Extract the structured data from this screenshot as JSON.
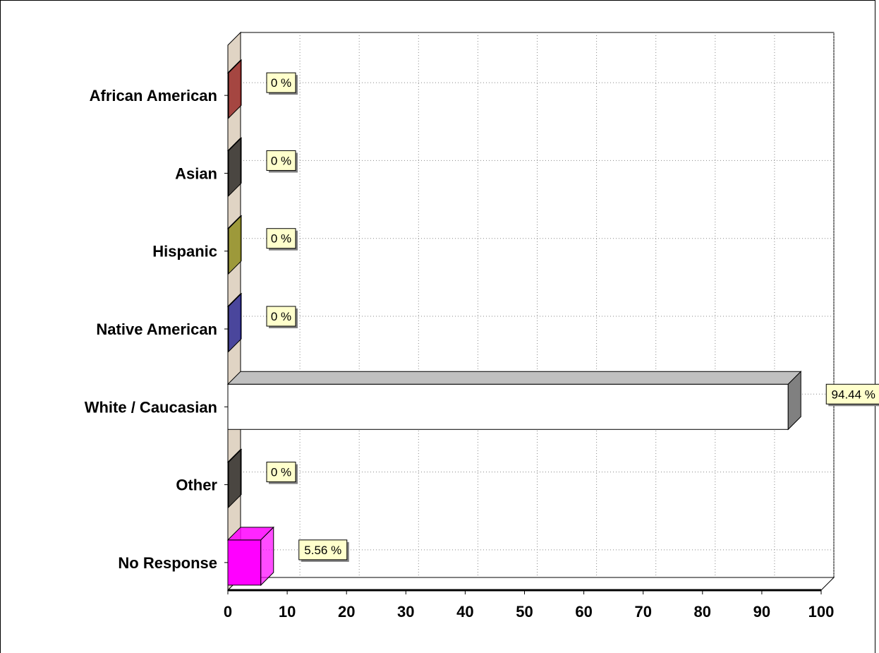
{
  "chart_data": {
    "type": "bar",
    "orientation": "horizontal",
    "title": "",
    "xlabel": "",
    "ylabel": "",
    "categories": [
      "African American",
      "Asian",
      "Hispanic",
      "Native American",
      "White / Caucasian",
      "Other",
      "No Response"
    ],
    "values": [
      0,
      0,
      0,
      0,
      94.44,
      0,
      5.56
    ],
    "data_labels": [
      "0 %",
      "0 %",
      "0 %",
      "0 %",
      "94.44 %",
      "0 %",
      "5.56 %"
    ],
    "colors": [
      "#8b0a0a",
      "#0a0a0a",
      "#808000",
      "#0a0a8b",
      "#ffffff",
      "#0a0a0a",
      "#ff00ff"
    ],
    "xlim": [
      0,
      100
    ],
    "xticks": [
      0,
      10,
      20,
      30,
      40,
      50,
      60,
      70,
      80,
      90,
      100
    ],
    "grid": true,
    "legend": "none"
  }
}
